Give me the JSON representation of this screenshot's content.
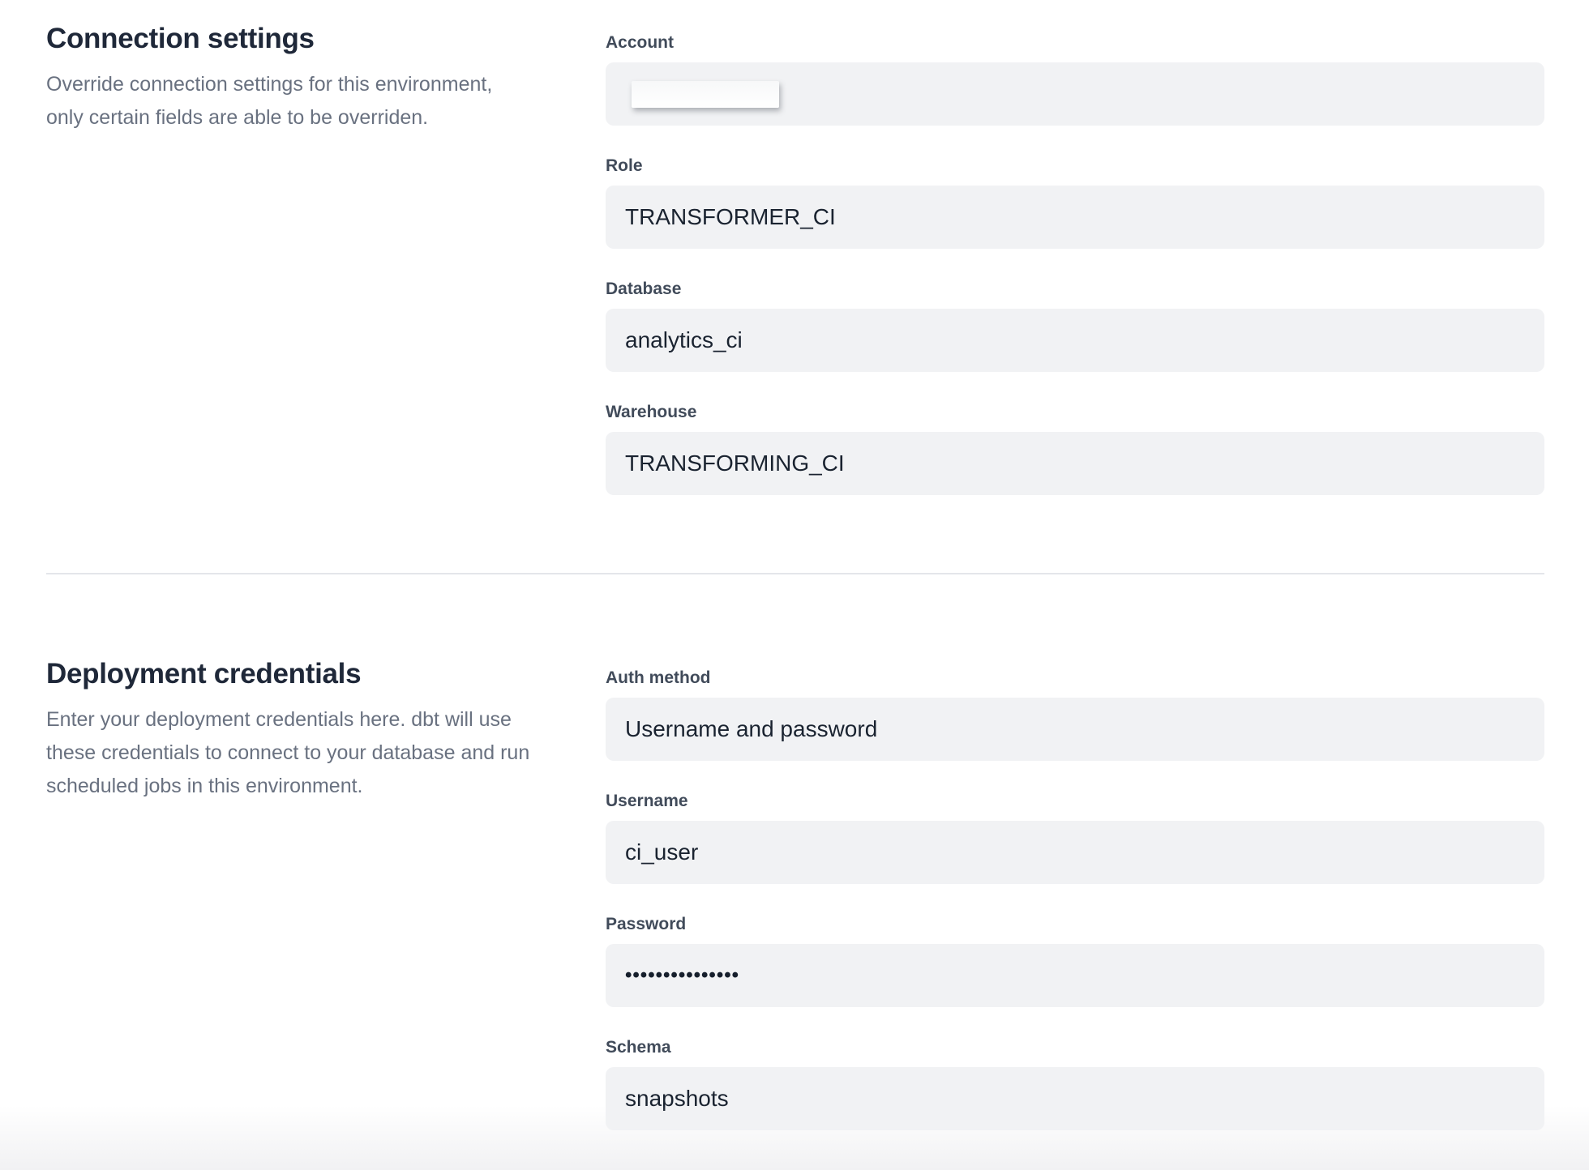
{
  "colors": {
    "heading": "#1f2839",
    "label": "#414b5a",
    "description": "#697180",
    "input_background": "#f1f2f4",
    "input_text": "#1a2330",
    "divider": "#e4e6ea"
  },
  "sections": [
    {
      "title": "Connection settings",
      "description_lines": [
        "Override connection settings for this environment,",
        "only certain fields are able to be overriden."
      ],
      "fields": [
        {
          "label": "Account",
          "value": "",
          "redacted": true
        },
        {
          "label": "Role",
          "value": "TRANSFORMER_CI"
        },
        {
          "label": "Database",
          "value": "analytics_ci"
        },
        {
          "label": "Warehouse",
          "value": "TRANSFORMING_CI"
        }
      ]
    },
    {
      "title": "Deployment credentials",
      "description_lines": [
        "Enter your deployment credentials here. dbt will use",
        "these credentials to connect to your database and run",
        "scheduled jobs in this environment."
      ],
      "fields": [
        {
          "label": "Auth method",
          "value": "Username and password"
        },
        {
          "label": "Username",
          "value": "ci_user"
        },
        {
          "label": "Password",
          "value": "•••••••••••••••",
          "masked": true
        },
        {
          "label": "Schema",
          "value": "snapshots"
        }
      ]
    }
  ]
}
